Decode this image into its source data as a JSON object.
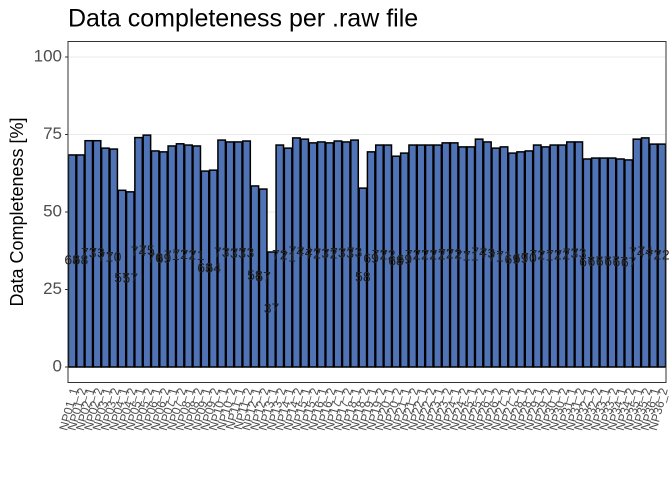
{
  "chart_data": {
    "type": "bar",
    "title": "Data completeness per .raw file",
    "y_label": "Data Completeness [%]",
    "categories": [
      "NP01_1",
      "NP01_2",
      "NP02_1",
      "NP02_2",
      "NP03_1",
      "NP03_2",
      "NP04_1",
      "NP04_2",
      "NP05_1",
      "NP05_2",
      "NP06_1",
      "NP06_2",
      "NP07_1",
      "NP07_2",
      "NP08_1",
      "NP08_2",
      "NP09_1",
      "NP09_2",
      "NP10_1",
      "NP10_2",
      "NP11_1",
      "NP11_2",
      "NP12_1",
      "NP12_2",
      "NP13_1",
      "NP13_2",
      "NP14_1",
      "NP14_2",
      "NP15_1",
      "NP15_2",
      "NP16_1",
      "NP16_2",
      "NP17_1",
      "NP17_2",
      "NP18_1",
      "NP18_2",
      "NP19_1",
      "NP19_2",
      "NP20_1",
      "NP20_2",
      "NP21_1",
      "NP21_2",
      "NP22_1",
      "NP22_2",
      "NP23_1",
      "NP23_2",
      "NP24_1",
      "NP24_2",
      "NP25_1",
      "NP25_2",
      "NP26_1",
      "NP26_2",
      "NP27_1",
      "NP27_2",
      "NP28_1",
      "NP28_2",
      "NP29_1",
      "NP29_2",
      "NP30_1",
      "NP30_2",
      "NP31_1",
      "NP31_2",
      "NP32_1",
      "NP32_2",
      "NP33_1",
      "NP33_2",
      "NP34_1",
      "NP34_2",
      "NP35_1",
      "NP35_2",
      "NP36_1",
      "NP36_2"
    ],
    "values": [
      68.4,
      68.4,
      73,
      73,
      70.6,
      70.3,
      57,
      56.5,
      74,
      74.8,
      69.7,
      69.4,
      71.3,
      72,
      71.6,
      71.3,
      63.2,
      63.5,
      73.2,
      72.6,
      72.6,
      72.9,
      58.4,
      57.4,
      37.1,
      71.6,
      70.6,
      73.9,
      73.5,
      72.3,
      72.6,
      72.3,
      72.9,
      72.6,
      73.2,
      57.7,
      69.4,
      71.6,
      71.6,
      68,
      69,
      71.6,
      71.6,
      71.6,
      71.6,
      72.3,
      72.3,
      71,
      71,
      73.5,
      72.6,
      70.6,
      71,
      69,
      69.4,
      69.7,
      71.6,
      71,
      71.6,
      71.6,
      72.6,
      72.6,
      67.1,
      67.4,
      67.4,
      67.4,
      67.1,
      66.8,
      73.5,
      73.9,
      71.9,
      71.9
    ],
    "value_labels": [
      "68",
      "68",
      "73",
      "73",
      "71",
      "70",
      "57",
      "57",
      "74",
      "75",
      "70",
      "69",
      "71",
      "72",
      "72",
      "71",
      "63",
      "64",
      "73",
      "73",
      "73",
      "73",
      "58",
      "57",
      "37",
      "72",
      "71",
      "74",
      "74",
      "72",
      "73",
      "72",
      "73",
      "73",
      "73",
      "58",
      "69",
      "72",
      "72",
      "68",
      "69",
      "72",
      "72",
      "72",
      "72",
      "72",
      "72",
      "71",
      "71",
      "74",
      "73",
      "71",
      "71",
      "69",
      "69",
      "70",
      "72",
      "71",
      "72",
      "72",
      "73",
      "73",
      "67",
      "67",
      "67",
      "67",
      "67",
      "67",
      "74",
      "74",
      "72",
      "72"
    ],
    "color": "#4f73b5",
    "ylim": [
      -5,
      105
    ],
    "yticks": [
      0,
      25,
      50,
      75,
      100
    ],
    "grid": true
  }
}
